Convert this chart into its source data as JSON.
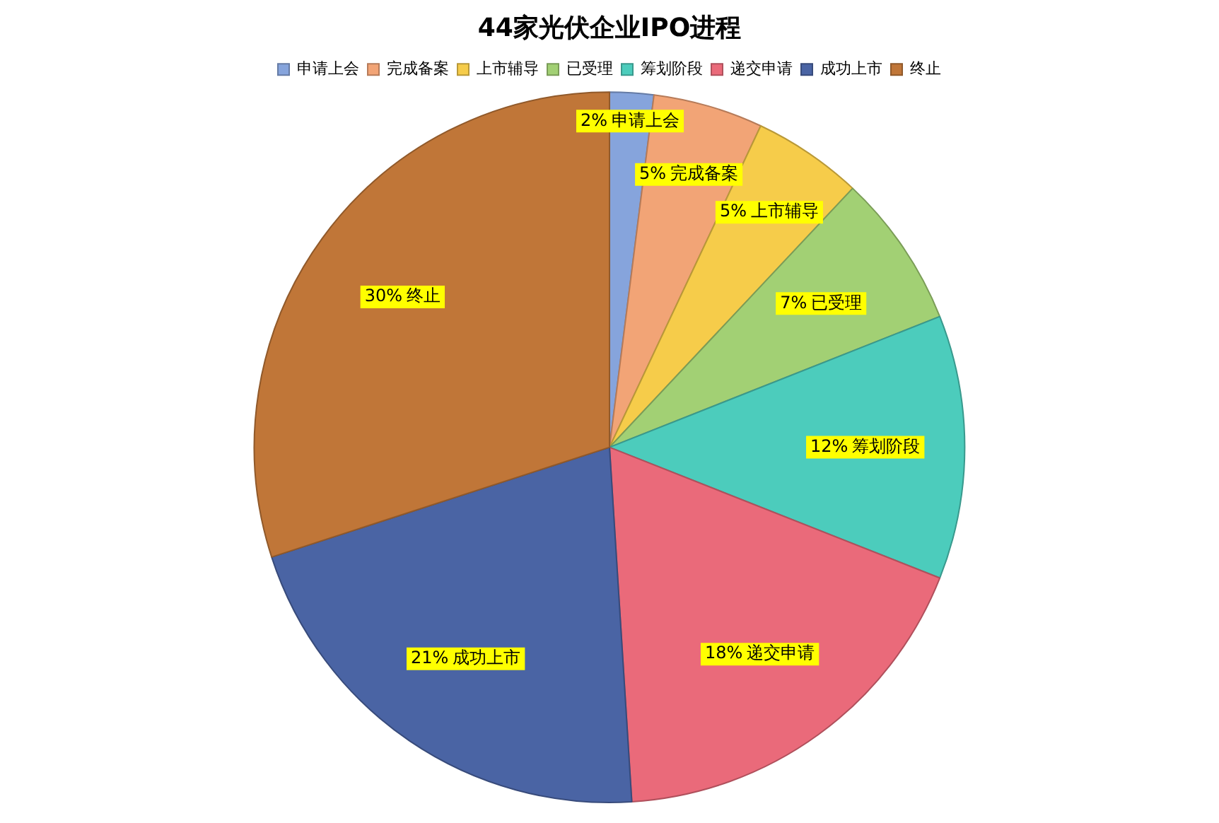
{
  "chart_data": {
    "type": "pie",
    "title": "44家光伏企业IPO进程",
    "categories": [
      "申请上会",
      "完成备案",
      "上市辅导",
      "已受理",
      "筹划阶段",
      "递交申请",
      "成功上市",
      "终止"
    ],
    "values": [
      2,
      5,
      5,
      7,
      12,
      18,
      21,
      30
    ],
    "colors": [
      "#86a4dc",
      "#f2a476",
      "#f6cc4a",
      "#a2d074",
      "#4cccbc",
      "#ea6a7a",
      "#4a64a4",
      "#c07638"
    ],
    "value_labels": [
      "2%",
      "5%",
      "5%",
      "7%",
      "12%",
      "18%",
      "21%",
      "30%"
    ],
    "legend": "top"
  }
}
